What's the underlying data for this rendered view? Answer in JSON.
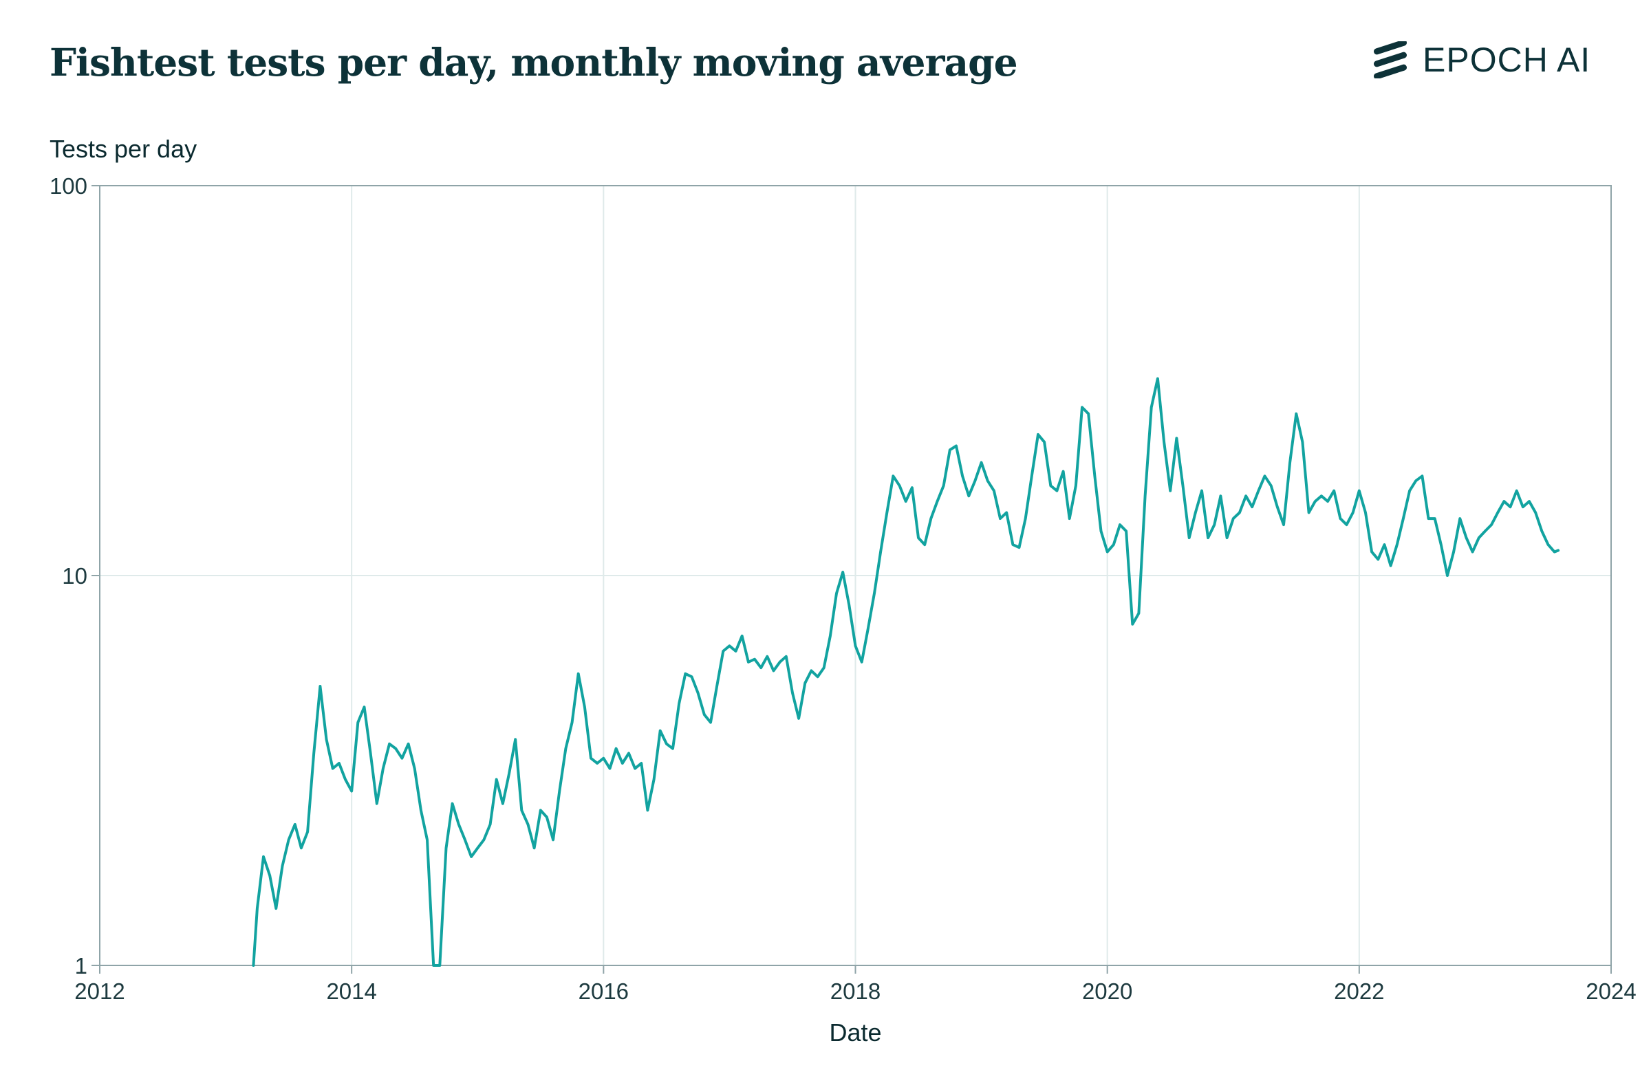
{
  "header": {
    "title": "Fishtest tests per day, monthly moving average",
    "brand": "EPOCH AI"
  },
  "colors": {
    "line": "#12a3a0",
    "text": "#0d3238",
    "grid": "#dfeaea",
    "axis": "#8fa4a8"
  },
  "chart_data": {
    "type": "line",
    "title": "Fishtest tests per day, monthly moving average",
    "xlabel": "Date",
    "ylabel": "Tests per day",
    "yscale": "log",
    "xlim": [
      2012,
      2024
    ],
    "ylim": [
      1,
      100
    ],
    "xticks": [
      "2012",
      "2014",
      "2016",
      "2018",
      "2020",
      "2022",
      "2024"
    ],
    "yticks": [
      "1",
      "10",
      "100"
    ],
    "grid": true,
    "series": [
      {
        "values": [
          [
            2013.22,
            1.0
          ],
          [
            2013.25,
            1.4
          ],
          [
            2013.3,
            1.9
          ],
          [
            2013.35,
            1.7
          ],
          [
            2013.4,
            1.4
          ],
          [
            2013.45,
            1.8
          ],
          [
            2013.5,
            2.1
          ],
          [
            2013.55,
            2.3
          ],
          [
            2013.6,
            2.0
          ],
          [
            2013.65,
            2.2
          ],
          [
            2013.7,
            3.5
          ],
          [
            2013.75,
            5.2
          ],
          [
            2013.8,
            3.8
          ],
          [
            2013.85,
            3.2
          ],
          [
            2013.9,
            3.3
          ],
          [
            2013.95,
            3.0
          ],
          [
            2014.0,
            2.8
          ],
          [
            2014.05,
            4.2
          ],
          [
            2014.1,
            4.6
          ],
          [
            2014.15,
            3.5
          ],
          [
            2014.2,
            2.6
          ],
          [
            2014.25,
            3.2
          ],
          [
            2014.3,
            3.7
          ],
          [
            2014.35,
            3.6
          ],
          [
            2014.4,
            3.4
          ],
          [
            2014.45,
            3.7
          ],
          [
            2014.5,
            3.2
          ],
          [
            2014.55,
            2.5
          ],
          [
            2014.6,
            2.1
          ],
          [
            2014.65,
            1.0
          ],
          [
            2014.7,
            1.0
          ],
          [
            2014.75,
            2.0
          ],
          [
            2014.8,
            2.6
          ],
          [
            2014.85,
            2.3
          ],
          [
            2014.9,
            2.1
          ],
          [
            2014.95,
            1.9
          ],
          [
            2015.0,
            2.0
          ],
          [
            2015.05,
            2.1
          ],
          [
            2015.1,
            2.3
          ],
          [
            2015.15,
            3.0
          ],
          [
            2015.2,
            2.6
          ],
          [
            2015.25,
            3.1
          ],
          [
            2015.3,
            3.8
          ],
          [
            2015.35,
            2.5
          ],
          [
            2015.4,
            2.3
          ],
          [
            2015.45,
            2.0
          ],
          [
            2015.5,
            2.5
          ],
          [
            2015.55,
            2.4
          ],
          [
            2015.6,
            2.1
          ],
          [
            2015.65,
            2.8
          ],
          [
            2015.7,
            3.6
          ],
          [
            2015.75,
            4.2
          ],
          [
            2015.8,
            5.6
          ],
          [
            2015.85,
            4.6
          ],
          [
            2015.9,
            3.4
          ],
          [
            2015.95,
            3.3
          ],
          [
            2016.0,
            3.4
          ],
          [
            2016.05,
            3.2
          ],
          [
            2016.1,
            3.6
          ],
          [
            2016.15,
            3.3
          ],
          [
            2016.2,
            3.5
          ],
          [
            2016.25,
            3.2
          ],
          [
            2016.3,
            3.3
          ],
          [
            2016.35,
            2.5
          ],
          [
            2016.4,
            3.0
          ],
          [
            2016.45,
            4.0
          ],
          [
            2016.5,
            3.7
          ],
          [
            2016.55,
            3.6
          ],
          [
            2016.6,
            4.7
          ],
          [
            2016.65,
            5.6
          ],
          [
            2016.7,
            5.5
          ],
          [
            2016.75,
            5.0
          ],
          [
            2016.8,
            4.4
          ],
          [
            2016.85,
            4.2
          ],
          [
            2016.9,
            5.2
          ],
          [
            2016.95,
            6.4
          ],
          [
            2017.0,
            6.6
          ],
          [
            2017.05,
            6.4
          ],
          [
            2017.1,
            7.0
          ],
          [
            2017.15,
            6.0
          ],
          [
            2017.2,
            6.1
          ],
          [
            2017.25,
            5.8
          ],
          [
            2017.3,
            6.2
          ],
          [
            2017.35,
            5.7
          ],
          [
            2017.4,
            6.0
          ],
          [
            2017.45,
            6.2
          ],
          [
            2017.5,
            5.0
          ],
          [
            2017.55,
            4.3
          ],
          [
            2017.6,
            5.3
          ],
          [
            2017.65,
            5.7
          ],
          [
            2017.7,
            5.5
          ],
          [
            2017.75,
            5.8
          ],
          [
            2017.8,
            7.0
          ],
          [
            2017.85,
            9.0
          ],
          [
            2017.9,
            10.2
          ],
          [
            2017.95,
            8.4
          ],
          [
            2018.0,
            6.6
          ],
          [
            2018.05,
            6.0
          ],
          [
            2018.1,
            7.3
          ],
          [
            2018.15,
            9.0
          ],
          [
            2018.2,
            11.5
          ],
          [
            2018.25,
            14.5
          ],
          [
            2018.3,
            18.0
          ],
          [
            2018.35,
            17.0
          ],
          [
            2018.4,
            15.5
          ],
          [
            2018.45,
            16.8
          ],
          [
            2018.5,
            12.5
          ],
          [
            2018.55,
            12.0
          ],
          [
            2018.6,
            14.0
          ],
          [
            2018.65,
            15.5
          ],
          [
            2018.7,
            17.0
          ],
          [
            2018.75,
            21.0
          ],
          [
            2018.8,
            21.5
          ],
          [
            2018.85,
            18.0
          ],
          [
            2018.9,
            16.0
          ],
          [
            2018.95,
            17.5
          ],
          [
            2019.0,
            19.5
          ],
          [
            2019.05,
            17.5
          ],
          [
            2019.1,
            16.5
          ],
          [
            2019.15,
            14.0
          ],
          [
            2019.2,
            14.5
          ],
          [
            2019.25,
            12.0
          ],
          [
            2019.3,
            11.8
          ],
          [
            2019.35,
            14.0
          ],
          [
            2019.4,
            18.0
          ],
          [
            2019.45,
            23.0
          ],
          [
            2019.5,
            22.0
          ],
          [
            2019.55,
            17.0
          ],
          [
            2019.6,
            16.5
          ],
          [
            2019.65,
            18.5
          ],
          [
            2019.7,
            14.0
          ],
          [
            2019.75,
            17.0
          ],
          [
            2019.8,
            27.0
          ],
          [
            2019.85,
            26.0
          ],
          [
            2019.9,
            18.0
          ],
          [
            2019.95,
            13.0
          ],
          [
            2020.0,
            11.5
          ],
          [
            2020.05,
            12.0
          ],
          [
            2020.1,
            13.5
          ],
          [
            2020.15,
            13.0
          ],
          [
            2020.2,
            7.5
          ],
          [
            2020.25,
            8.0
          ],
          [
            2020.3,
            16.0
          ],
          [
            2020.35,
            27.0
          ],
          [
            2020.4,
            32.0
          ],
          [
            2020.45,
            22.0
          ],
          [
            2020.5,
            16.5
          ],
          [
            2020.55,
            22.5
          ],
          [
            2020.6,
            17.0
          ],
          [
            2020.65,
            12.5
          ],
          [
            2020.7,
            14.5
          ],
          [
            2020.75,
            16.5
          ],
          [
            2020.8,
            12.5
          ],
          [
            2020.85,
            13.5
          ],
          [
            2020.9,
            16.0
          ],
          [
            2020.95,
            12.5
          ],
          [
            2021.0,
            14.0
          ],
          [
            2021.05,
            14.5
          ],
          [
            2021.1,
            16.0
          ],
          [
            2021.15,
            15.0
          ],
          [
            2021.2,
            16.5
          ],
          [
            2021.25,
            18.0
          ],
          [
            2021.3,
            17.0
          ],
          [
            2021.35,
            15.0
          ],
          [
            2021.4,
            13.5
          ],
          [
            2021.45,
            19.5
          ],
          [
            2021.5,
            26.0
          ],
          [
            2021.55,
            22.0
          ],
          [
            2021.6,
            14.5
          ],
          [
            2021.65,
            15.5
          ],
          [
            2021.7,
            16.0
          ],
          [
            2021.75,
            15.5
          ],
          [
            2021.8,
            16.5
          ],
          [
            2021.85,
            14.0
          ],
          [
            2021.9,
            13.5
          ],
          [
            2021.95,
            14.5
          ],
          [
            2022.0,
            16.5
          ],
          [
            2022.05,
            14.5
          ],
          [
            2022.1,
            11.5
          ],
          [
            2022.15,
            11.0
          ],
          [
            2022.2,
            12.0
          ],
          [
            2022.25,
            10.6
          ],
          [
            2022.3,
            12.0
          ],
          [
            2022.35,
            14.0
          ],
          [
            2022.4,
            16.5
          ],
          [
            2022.45,
            17.5
          ],
          [
            2022.5,
            18.0
          ],
          [
            2022.55,
            14.0
          ],
          [
            2022.6,
            14.0
          ],
          [
            2022.65,
            12.0
          ],
          [
            2022.7,
            10.0
          ],
          [
            2022.75,
            11.5
          ],
          [
            2022.8,
            14.0
          ],
          [
            2022.85,
            12.5
          ],
          [
            2022.9,
            11.5
          ],
          [
            2022.95,
            12.5
          ],
          [
            2023.0,
            13.0
          ],
          [
            2023.05,
            13.5
          ],
          [
            2023.1,
            14.5
          ],
          [
            2023.15,
            15.5
          ],
          [
            2023.2,
            15.0
          ],
          [
            2023.25,
            16.5
          ],
          [
            2023.3,
            15.0
          ],
          [
            2023.35,
            15.5
          ],
          [
            2023.4,
            14.5
          ],
          [
            2023.45,
            13.0
          ],
          [
            2023.5,
            12.0
          ],
          [
            2023.55,
            11.5
          ],
          [
            2023.58,
            11.6
          ]
        ]
      }
    ]
  }
}
